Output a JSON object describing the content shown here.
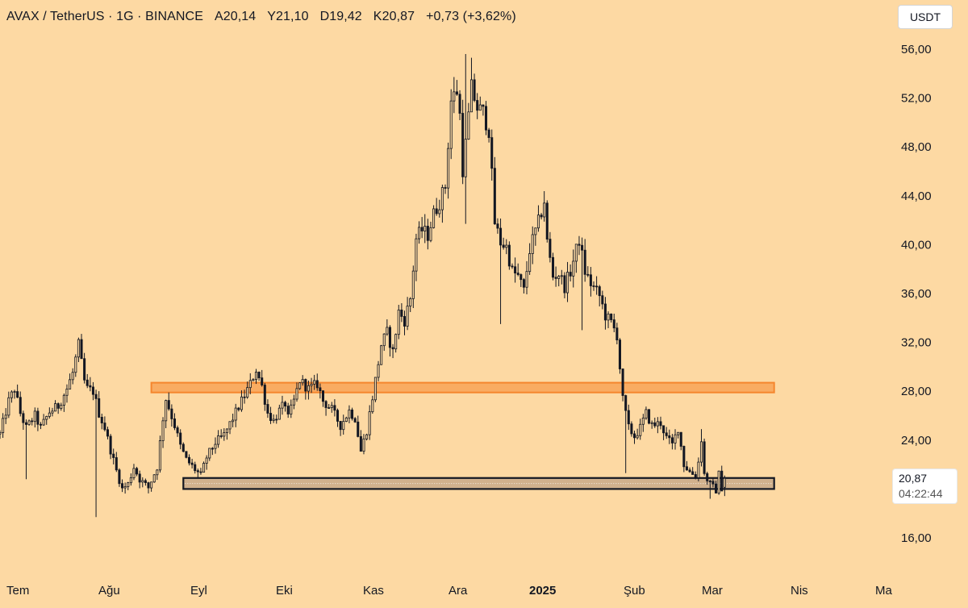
{
  "header": {
    "symbol": "AVAX / TetherUS · 1G · BINANCE",
    "open": "A20,14",
    "high": "Y21,10",
    "low": "D19,42",
    "close": "K20,87",
    "change": "+0,73 (+3,62%)"
  },
  "currency_button": "USDT",
  "price_tag": {
    "price": "20,87",
    "countdown": "04:22:44"
  },
  "colors": {
    "background": "#fdd9a3",
    "candle": "#131722",
    "resistance_zone": "#f5862e",
    "support_zone": "#131722"
  },
  "chart_data": {
    "type": "candlestick",
    "title": "",
    "ylim": [
      14.0,
      58.0
    ],
    "y_ticks": [
      "16,00",
      "24,00",
      "28,00",
      "32,00",
      "36,00",
      "40,00",
      "44,00",
      "48,00",
      "52,00",
      "56,00"
    ],
    "x_ticks": [
      "Tem",
      "Ağu",
      "Eyl",
      "Eki",
      "Kas",
      "Ara",
      "2025",
      "Şub",
      "Mar",
      "Nis",
      "Ma"
    ],
    "x_start": "2024-07-03",
    "x_end": "2025-05-05",
    "last_date": "2025-03-09",
    "zones": [
      {
        "name": "resistance",
        "from_date": "2024-08-24",
        "to_date": "2025-03-26",
        "y_low": 27.9,
        "y_high": 28.7
      },
      {
        "name": "support",
        "from_date": "2024-09-04",
        "to_date": "2025-03-26",
        "y_low": 20.0,
        "y_high": 20.9
      }
    ],
    "keypoints": [
      [
        "2024-07-03",
        24.5
      ],
      [
        "2024-07-06",
        27.2
      ],
      [
        "2024-07-08",
        28.2
      ],
      [
        "2024-07-10",
        26.2
      ],
      [
        "2024-07-12",
        25.0
      ],
      [
        "2024-07-15",
        26.0
      ],
      [
        "2024-07-17",
        25.0
      ],
      [
        "2024-07-20",
        26.3
      ],
      [
        "2024-07-23",
        26.8
      ],
      [
        "2024-07-26",
        28.2
      ],
      [
        "2024-07-28",
        29.5
      ],
      [
        "2024-07-30",
        31.8
      ],
      [
        "2024-08-01",
        28.8
      ],
      [
        "2024-08-02",
        28.2
      ],
      [
        "2024-08-04",
        28.0
      ],
      [
        "2024-08-06",
        26.2
      ],
      [
        "2024-08-08",
        25.0
      ],
      [
        "2024-08-10",
        23.2
      ],
      [
        "2024-08-12",
        21.5
      ],
      [
        "2024-08-14",
        20.0
      ],
      [
        "2024-08-16",
        20.4
      ],
      [
        "2024-08-18",
        21.8
      ],
      [
        "2024-08-20",
        20.8
      ],
      [
        "2024-08-23",
        20.1
      ],
      [
        "2024-08-26",
        21.8
      ],
      [
        "2024-08-28",
        25.8
      ],
      [
        "2024-08-29",
        27.4
      ],
      [
        "2024-09-01",
        25.2
      ],
      [
        "2024-09-03",
        23.5
      ],
      [
        "2024-09-05",
        22.4
      ],
      [
        "2024-09-08",
        21.6
      ],
      [
        "2024-09-10",
        21.1
      ],
      [
        "2024-09-12",
        22.6
      ],
      [
        "2024-09-15",
        23.8
      ],
      [
        "2024-09-18",
        24.4
      ],
      [
        "2024-09-21",
        25.8
      ],
      [
        "2024-09-24",
        27.2
      ],
      [
        "2024-09-27",
        28.6
      ],
      [
        "2024-09-29",
        29.8
      ],
      [
        "2024-10-01",
        28.4
      ],
      [
        "2024-10-03",
        26.2
      ],
      [
        "2024-10-05",
        25.6
      ],
      [
        "2024-10-07",
        26.4
      ],
      [
        "2024-10-09",
        27.0
      ],
      [
        "2024-10-10",
        25.8
      ],
      [
        "2024-10-12",
        27.2
      ],
      [
        "2024-10-14",
        28.9
      ],
      [
        "2024-10-17",
        28.2
      ],
      [
        "2024-10-20",
        28.6
      ],
      [
        "2024-10-22",
        27.2
      ],
      [
        "2024-10-25",
        26.5
      ],
      [
        "2024-10-28",
        25.2
      ],
      [
        "2024-10-31",
        26.4
      ],
      [
        "2024-11-02",
        25.8
      ],
      [
        "2024-11-04",
        23.1
      ],
      [
        "2024-11-06",
        24.8
      ],
      [
        "2024-11-09",
        28.9
      ],
      [
        "2024-11-11",
        31.8
      ],
      [
        "2024-11-13",
        32.8
      ],
      [
        "2024-11-15",
        31.2
      ],
      [
        "2024-11-17",
        34.5
      ],
      [
        "2024-11-19",
        33.8
      ],
      [
        "2024-11-21",
        35.6
      ],
      [
        "2024-11-23",
        40.5
      ],
      [
        "2024-11-25",
        41.2
      ],
      [
        "2024-11-27",
        40.8
      ],
      [
        "2024-11-29",
        42.5
      ],
      [
        "2024-12-01",
        43.5
      ],
      [
        "2024-12-03",
        44.8
      ],
      [
        "2024-12-05",
        51.8
      ],
      [
        "2024-12-07",
        52.6
      ],
      [
        "2024-12-08",
        50.6
      ],
      [
        "2024-12-09",
        46.2
      ],
      [
        "2024-12-10",
        48.2
      ],
      [
        "2024-12-12",
        52.8
      ],
      [
        "2024-12-14",
        51.2
      ],
      [
        "2024-12-16",
        50.8
      ],
      [
        "2024-12-18",
        49.4
      ],
      [
        "2024-12-20",
        41.8
      ],
      [
        "2024-12-22",
        40.2
      ],
      [
        "2024-12-24",
        39.8
      ],
      [
        "2024-12-26",
        37.8
      ],
      [
        "2024-12-28",
        37.4
      ],
      [
        "2024-12-30",
        36.2
      ],
      [
        "2025-01-01",
        39.6
      ],
      [
        "2025-01-04",
        41.8
      ],
      [
        "2025-01-06",
        43.6
      ],
      [
        "2025-01-07",
        40.2
      ],
      [
        "2025-01-09",
        37.4
      ],
      [
        "2025-01-11",
        37.6
      ],
      [
        "2025-01-13",
        36.6
      ],
      [
        "2025-01-15",
        37.8
      ],
      [
        "2025-01-18",
        40.4
      ],
      [
        "2025-01-20",
        37.8
      ],
      [
        "2025-01-22",
        36.8
      ],
      [
        "2025-01-25",
        35.8
      ],
      [
        "2025-01-27",
        34.2
      ],
      [
        "2025-01-29",
        33.6
      ],
      [
        "2025-01-31",
        32.6
      ],
      [
        "2025-02-02",
        27.3
      ],
      [
        "2025-02-04",
        25.0
      ],
      [
        "2025-02-06",
        24.3
      ],
      [
        "2025-02-08",
        25.0
      ],
      [
        "2025-02-10",
        26.2
      ],
      [
        "2025-02-12",
        25.2
      ],
      [
        "2025-02-15",
        25.4
      ],
      [
        "2025-02-17",
        24.2
      ],
      [
        "2025-02-19",
        23.6
      ],
      [
        "2025-02-21",
        25.0
      ],
      [
        "2025-02-23",
        22.0
      ],
      [
        "2025-02-25",
        21.4
      ],
      [
        "2025-02-27",
        21.1
      ],
      [
        "2025-02-28",
        22.2
      ],
      [
        "2025-03-01",
        24.1
      ],
      [
        "2025-03-02",
        21.2
      ],
      [
        "2025-03-04",
        20.4
      ],
      [
        "2025-03-06",
        19.9
      ],
      [
        "2025-03-07",
        21.2
      ],
      [
        "2025-03-08",
        20.1
      ],
      [
        "2025-03-09",
        20.87
      ]
    ],
    "spikes": [
      {
        "date": "2024-07-12",
        "low": 20.8
      },
      {
        "date": "2024-08-05",
        "low": 17.7
      },
      {
        "date": "2024-12-10",
        "high": 55.6
      },
      {
        "date": "2024-12-12",
        "high": 55.3
      },
      {
        "date": "2024-12-10",
        "low": 41.7
      },
      {
        "date": "2024-12-22",
        "low": 33.5
      },
      {
        "date": "2025-01-19",
        "low": 33.0
      },
      {
        "date": "2025-02-03",
        "low": 21.3
      },
      {
        "date": "2025-03-01",
        "high": 24.9
      },
      {
        "date": "2025-03-04",
        "low": 19.2
      }
    ]
  }
}
